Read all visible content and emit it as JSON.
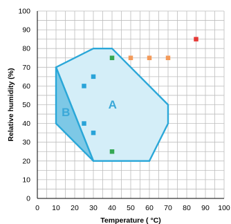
{
  "chart_data": {
    "type": "scatter",
    "xlabel": "Temperature ( °C)",
    "ylabel": "Relative humidity (%)",
    "xlim": [
      0,
      100
    ],
    "ylim": [
      0,
      100
    ],
    "x_ticks": [
      0,
      10,
      20,
      30,
      40,
      50,
      60,
      70,
      80,
      90,
      100
    ],
    "y_ticks": [
      0,
      10,
      20,
      30,
      40,
      50,
      60,
      70,
      80,
      90,
      100
    ],
    "grid": true,
    "regions": [
      {
        "label": "A",
        "fill": "#d4eef8",
        "stroke": "#2aa7d8",
        "polygon": [
          [
            10,
            70
          ],
          [
            30,
            80
          ],
          [
            40,
            80
          ],
          [
            70,
            50
          ],
          [
            70,
            40
          ],
          [
            60,
            20
          ],
          [
            30,
            20
          ],
          [
            10,
            70
          ]
        ]
      },
      {
        "label": "B",
        "fill": "#7dc8e6",
        "stroke": "#2aa7d8",
        "polygon": [
          [
            10,
            70
          ],
          [
            30,
            20
          ],
          [
            10,
            40
          ]
        ]
      }
    ],
    "series": [
      {
        "color": "#29a3d8",
        "points": [
          [
            25,
            60
          ],
          [
            30,
            65
          ],
          [
            25,
            40
          ],
          [
            30,
            35
          ]
        ]
      },
      {
        "color": "#35a853",
        "points": [
          [
            40,
            75
          ],
          [
            40,
            25
          ]
        ]
      },
      {
        "color": "#f39a5a",
        "points": [
          [
            50,
            75
          ],
          [
            60,
            75
          ],
          [
            70,
            75
          ]
        ]
      },
      {
        "color": "#e53935",
        "points": [
          [
            85,
            85
          ]
        ]
      }
    ]
  }
}
